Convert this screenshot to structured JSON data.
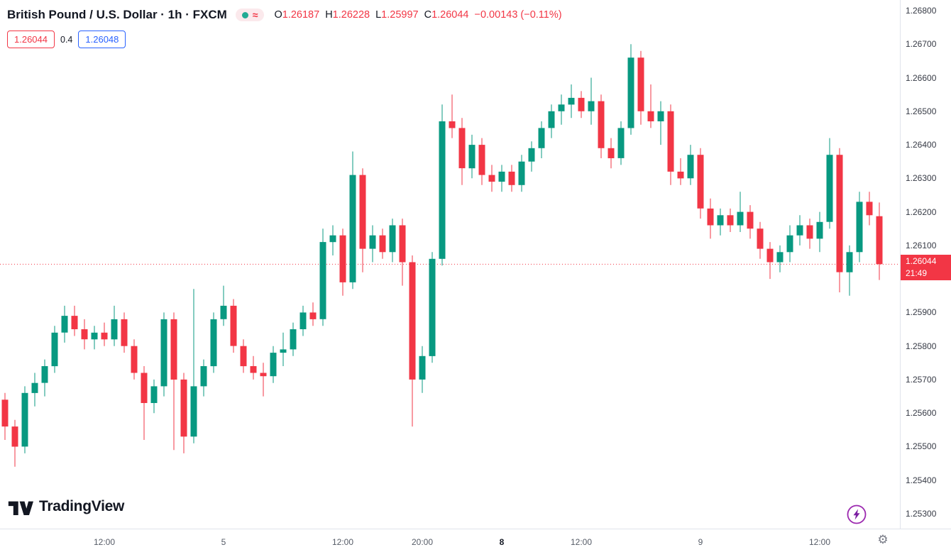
{
  "header": {
    "title": "British Pound / U.S. Dollar · 1h · FXCM",
    "approx_symbol": "≈",
    "ohlc": [
      {
        "label": "O",
        "value": "1.26187"
      },
      {
        "label": "H",
        "value": "1.26228"
      },
      {
        "label": "L",
        "value": "1.25997"
      },
      {
        "label": "C",
        "value": "1.26044"
      }
    ],
    "change": "−0.00143 (−0.11%)",
    "bid": "1.26044",
    "spread": "0.4",
    "ask": "1.26048"
  },
  "colors": {
    "up": "#089981",
    "down": "#f23645",
    "bid": "#f23645",
    "ask": "#2962ff",
    "purple": "#9b27af"
  },
  "chart_data": {
    "type": "candlestick",
    "title": "British Pound / U.S. Dollar",
    "interval": "1h",
    "exchange": "FXCM",
    "up_color": "#089981",
    "down_color": "#f23645",
    "grid": false,
    "y_axis": {
      "min": 1.253,
      "max": 1.268,
      "ticks": [
        "1.26800",
        "1.26700",
        "1.26600",
        "1.26500",
        "1.26400",
        "1.26300",
        "1.26200",
        "1.26100",
        "1.25900",
        "1.25800",
        "1.25700",
        "1.25600",
        "1.25500",
        "1.25400",
        "1.25300"
      ]
    },
    "x_axis": {
      "ticks": [
        {
          "label": "12:00",
          "index": 10,
          "bold": false
        },
        {
          "label": "5",
          "index": 22,
          "bold": false
        },
        {
          "label": "12:00",
          "index": 34,
          "bold": false
        },
        {
          "label": "20:00",
          "index": 42,
          "bold": false
        },
        {
          "label": "8",
          "index": 50,
          "bold": true
        },
        {
          "label": "12:00",
          "index": 58,
          "bold": false
        },
        {
          "label": "9",
          "index": 70,
          "bold": false
        },
        {
          "label": "12:00",
          "index": 82,
          "bold": false
        }
      ]
    },
    "last_price": 1.26044,
    "last_price_label": "1.26044",
    "countdown": "21:49",
    "candles_ohlc": [
      [
        1.2564,
        1.2566,
        1.2552,
        1.2556
      ],
      [
        1.2556,
        1.2558,
        1.2544,
        1.255
      ],
      [
        1.255,
        1.2568,
        1.2548,
        1.2566
      ],
      [
        1.2566,
        1.2572,
        1.2562,
        1.2569
      ],
      [
        1.2569,
        1.2576,
        1.2565,
        1.2574
      ],
      [
        1.2574,
        1.2586,
        1.2572,
        1.2584
      ],
      [
        1.2584,
        1.2592,
        1.2581,
        1.2589
      ],
      [
        1.2589,
        1.2592,
        1.2583,
        1.2585
      ],
      [
        1.2585,
        1.2588,
        1.2579,
        1.2582
      ],
      [
        1.2582,
        1.2586,
        1.2579,
        1.2584
      ],
      [
        1.2584,
        1.2587,
        1.258,
        1.2582
      ],
      [
        1.2582,
        1.2592,
        1.258,
        1.2588
      ],
      [
        1.2588,
        1.259,
        1.2578,
        1.258
      ],
      [
        1.258,
        1.2582,
        1.257,
        1.2572
      ],
      [
        1.2572,
        1.2574,
        1.2552,
        1.2563
      ],
      [
        1.2563,
        1.257,
        1.256,
        1.2568
      ],
      [
        1.2568,
        1.259,
        1.2565,
        1.2588
      ],
      [
        1.2588,
        1.259,
        1.2549,
        1.257
      ],
      [
        1.257,
        1.2572,
        1.2548,
        1.2553
      ],
      [
        1.2553,
        1.2597,
        1.2551,
        1.2568
      ],
      [
        1.2568,
        1.2576,
        1.2565,
        1.2574
      ],
      [
        1.2574,
        1.259,
        1.2572,
        1.2588
      ],
      [
        1.2588,
        1.2598,
        1.2586,
        1.2592
      ],
      [
        1.2592,
        1.2594,
        1.2578,
        1.258
      ],
      [
        1.258,
        1.2582,
        1.2572,
        1.2574
      ],
      [
        1.2574,
        1.2577,
        1.257,
        1.2572
      ],
      [
        1.2572,
        1.2575,
        1.2565,
        1.2571
      ],
      [
        1.2571,
        1.258,
        1.2569,
        1.2578
      ],
      [
        1.2578,
        1.2584,
        1.2574,
        1.2579
      ],
      [
        1.2579,
        1.2587,
        1.2577,
        1.2585
      ],
      [
        1.2585,
        1.2592,
        1.2583,
        1.259
      ],
      [
        1.259,
        1.2593,
        1.2586,
        1.2588
      ],
      [
        1.2588,
        1.2615,
        1.2586,
        1.2611
      ],
      [
        1.2611,
        1.2616,
        1.2607,
        1.2613
      ],
      [
        1.2613,
        1.2615,
        1.2595,
        1.2599
      ],
      [
        1.2599,
        1.2638,
        1.2597,
        1.2631
      ],
      [
        1.2631,
        1.2633,
        1.2602,
        1.2609
      ],
      [
        1.2609,
        1.2616,
        1.2605,
        1.2613
      ],
      [
        1.2613,
        1.2615,
        1.2606,
        1.2608
      ],
      [
        1.2608,
        1.2618,
        1.2605,
        1.2616
      ],
      [
        1.2616,
        1.2618,
        1.2598,
        1.2605
      ],
      [
        1.2605,
        1.2607,
        1.2556,
        1.257
      ],
      [
        1.257,
        1.258,
        1.2566,
        1.2577
      ],
      [
        1.2577,
        1.2608,
        1.2575,
        1.2606
      ],
      [
        1.2606,
        1.2652,
        1.2604,
        1.2647
      ],
      [
        1.2647,
        1.2655,
        1.2642,
        1.2645
      ],
      [
        1.2645,
        1.2648,
        1.2628,
        1.2633
      ],
      [
        1.2633,
        1.2643,
        1.263,
        1.264
      ],
      [
        1.264,
        1.2642,
        1.2628,
        1.2631
      ],
      [
        1.2631,
        1.2634,
        1.2626,
        1.2629
      ],
      [
        1.2629,
        1.2634,
        1.2626,
        1.2632
      ],
      [
        1.2632,
        1.2634,
        1.2626,
        1.2628
      ],
      [
        1.2628,
        1.2637,
        1.2626,
        1.2635
      ],
      [
        1.2635,
        1.2641,
        1.2632,
        1.2639
      ],
      [
        1.2639,
        1.2647,
        1.2636,
        1.2645
      ],
      [
        1.2645,
        1.2652,
        1.2642,
        1.265
      ],
      [
        1.265,
        1.2655,
        1.2646,
        1.2652
      ],
      [
        1.2652,
        1.2658,
        1.2648,
        1.2654
      ],
      [
        1.2654,
        1.2656,
        1.2648,
        1.265
      ],
      [
        1.265,
        1.266,
        1.2646,
        1.2653
      ],
      [
        1.2653,
        1.2655,
        1.2636,
        1.2639
      ],
      [
        1.2639,
        1.2642,
        1.2633,
        1.2636
      ],
      [
        1.2636,
        1.2647,
        1.2634,
        1.2645
      ],
      [
        1.2645,
        1.267,
        1.2643,
        1.2666
      ],
      [
        1.2666,
        1.2668,
        1.2646,
        1.265
      ],
      [
        1.265,
        1.2658,
        1.2645,
        1.2647
      ],
      [
        1.2647,
        1.2653,
        1.264,
        1.265
      ],
      [
        1.265,
        1.2652,
        1.2628,
        1.2632
      ],
      [
        1.2632,
        1.2636,
        1.2628,
        1.263
      ],
      [
        1.263,
        1.264,
        1.2628,
        1.2637
      ],
      [
        1.2637,
        1.2639,
        1.2618,
        1.2621
      ],
      [
        1.2621,
        1.2624,
        1.2612,
        1.2616
      ],
      [
        1.2616,
        1.2621,
        1.2613,
        1.2619
      ],
      [
        1.2619,
        1.2621,
        1.2614,
        1.2616
      ],
      [
        1.2616,
        1.2626,
        1.2614,
        1.262
      ],
      [
        1.262,
        1.2622,
        1.2612,
        1.2615
      ],
      [
        1.2615,
        1.2617,
        1.2606,
        1.2609
      ],
      [
        1.2609,
        1.2611,
        1.26,
        1.2605
      ],
      [
        1.2605,
        1.261,
        1.2602,
        1.2608
      ],
      [
        1.2608,
        1.2616,
        1.2605,
        1.2613
      ],
      [
        1.2613,
        1.2619,
        1.261,
        1.2616
      ],
      [
        1.2616,
        1.2618,
        1.2609,
        1.2612
      ],
      [
        1.2612,
        1.262,
        1.2608,
        1.2617
      ],
      [
        1.2617,
        1.2642,
        1.2615,
        1.2637
      ],
      [
        1.2637,
        1.2639,
        1.2596,
        1.2602
      ],
      [
        1.2602,
        1.261,
        1.2595,
        1.2608
      ],
      [
        1.2608,
        1.2626,
        1.2605,
        1.2623
      ],
      [
        1.2623,
        1.2626,
        1.2616,
        1.2619
      ],
      [
        1.26187,
        1.26228,
        1.25997,
        1.26044
      ]
    ]
  },
  "footer": {
    "logo_text": "TradingView"
  },
  "icons": {
    "gear": "⚙"
  }
}
